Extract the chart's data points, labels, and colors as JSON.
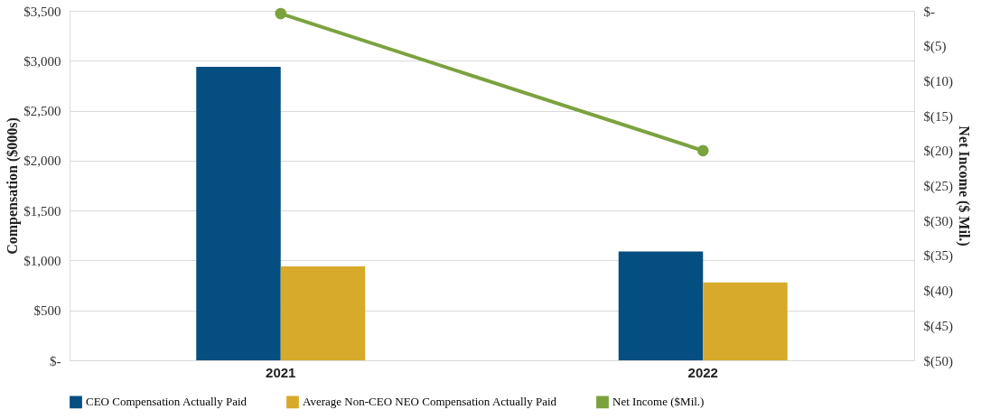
{
  "chart_data": {
    "type": "bar",
    "ylabel": "Compensation ($000s)",
    "y2label": "Net Income ($ Mil.)",
    "categories": [
      "2021",
      "2022"
    ],
    "series": [
      {
        "name": "CEO Compensation Actually Paid",
        "color": "#044e82",
        "values": [
          2940,
          1090
        ]
      },
      {
        "name": "Average Non-CEO NEO Compensation Actually Paid",
        "color": "#d8aa2b",
        "values": [
          940,
          780
        ]
      },
      {
        "name": "Net Income ($Mil.)",
        "type": "line",
        "axis": "y2",
        "color": "#7ba23f",
        "values": [
          -0.4,
          -20
        ]
      }
    ],
    "ylim": [
      0,
      3500
    ],
    "yticks": [
      {
        "value": 0,
        "label": "$-"
      },
      {
        "value": 500,
        "label": "$500"
      },
      {
        "value": 1000,
        "label": "$1,000"
      },
      {
        "value": 1500,
        "label": "$1,500"
      },
      {
        "value": 2000,
        "label": "$2,000"
      },
      {
        "value": 2500,
        "label": "$2,500"
      },
      {
        "value": 3000,
        "label": "$3,000"
      },
      {
        "value": 3500,
        "label": "$3,500"
      }
    ],
    "y2lim": [
      -50,
      0
    ],
    "y2ticks": [
      {
        "value": -50,
        "label": "$(50)"
      },
      {
        "value": -45,
        "label": "$(45)"
      },
      {
        "value": -40,
        "label": "$(40)"
      },
      {
        "value": -35,
        "label": "$(35)"
      },
      {
        "value": -30,
        "label": "$(30)"
      },
      {
        "value": -25,
        "label": "$(25)"
      },
      {
        "value": -20,
        "label": "$(20)"
      },
      {
        "value": -15,
        "label": "$(15)"
      },
      {
        "value": -10,
        "label": "$(10)"
      },
      {
        "value": -5,
        "label": "$(5)"
      },
      {
        "value": 0,
        "label": "$-"
      }
    ],
    "grid": "y",
    "legend": "bottom",
    "marker": "circle"
  }
}
